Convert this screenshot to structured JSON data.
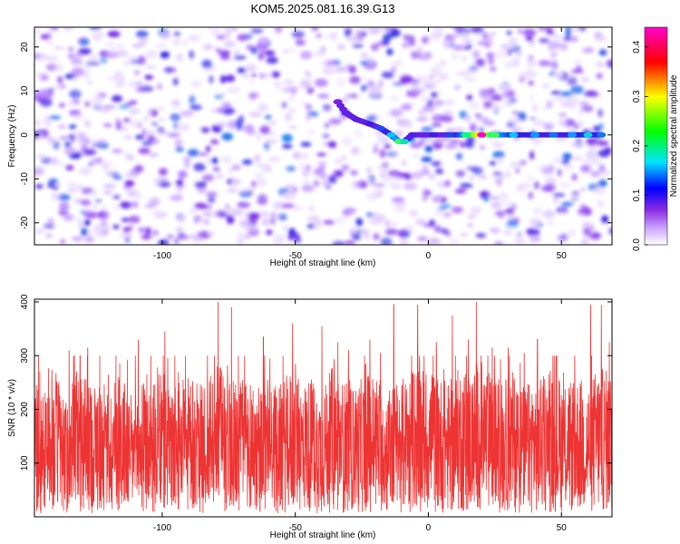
{
  "chart_data": [
    {
      "type": "heatmap",
      "title": "KOM5.2025.081.16.39.G13",
      "xlabel": "Height of straight line (km)",
      "ylabel": "Frequency (Hz)",
      "xlim": [
        -148,
        69
      ],
      "ylim": [
        -25,
        24.5
      ],
      "xticks": [
        -100,
        -50,
        0,
        50
      ],
      "xtick_labels": [
        "-100",
        "-50",
        "0",
        "50"
      ],
      "yticks": [
        -20,
        -10,
        0,
        10,
        20
      ],
      "ytick_labels": [
        "-20",
        "-10",
        "0",
        "10",
        "20"
      ],
      "colorbar": {
        "label": "Normalized spectral amplitude",
        "range": [
          0,
          0.44
        ],
        "ticks": [
          0.0,
          0.1,
          0.2,
          0.3,
          0.4
        ],
        "tick_labels": [
          "0.0",
          "0.1",
          "0.2",
          "0.3",
          "0.4"
        ],
        "colors": [
          "#ffffff",
          "#9b30ff",
          "#0000ff",
          "#00e5ff",
          "#00ff00",
          "#ffff00",
          "#ff0000",
          "#ff00ff"
        ]
      },
      "background_noise_level": 0.05,
      "signal_ridge": [
        {
          "x": -34,
          "y": 7.5,
          "amp": 0.08
        },
        {
          "x": -31,
          "y": 5.0,
          "amp": 0.09
        },
        {
          "x": -27,
          "y": 3.5,
          "amp": 0.1
        },
        {
          "x": -22,
          "y": 2.5,
          "amp": 0.11
        },
        {
          "x": -18,
          "y": 1.5,
          "amp": 0.13
        },
        {
          "x": -14,
          "y": 0.0,
          "amp": 0.16
        },
        {
          "x": -11,
          "y": -1.5,
          "amp": 0.22
        },
        {
          "x": -9,
          "y": -1.5,
          "amp": 0.18
        },
        {
          "x": -6,
          "y": 0.0,
          "amp": 0.1
        },
        {
          "x": 2,
          "y": 0.0,
          "amp": 0.11
        },
        {
          "x": 8,
          "y": 0.0,
          "amp": 0.13
        },
        {
          "x": 14,
          "y": 0.0,
          "amp": 0.2
        },
        {
          "x": 20,
          "y": 0.0,
          "amp": 0.44
        },
        {
          "x": 25,
          "y": 0.0,
          "amp": 0.22
        },
        {
          "x": 32,
          "y": 0.0,
          "amp": 0.16
        },
        {
          "x": 40,
          "y": 0.0,
          "amp": 0.15
        },
        {
          "x": 47,
          "y": 0.0,
          "amp": 0.14
        },
        {
          "x": 54,
          "y": 0.0,
          "amp": 0.15
        },
        {
          "x": 60,
          "y": 0.0,
          "amp": 0.17
        },
        {
          "x": 65,
          "y": 0.0,
          "amp": 0.14
        }
      ]
    },
    {
      "type": "line",
      "title": "",
      "xlabel": "Height of straight line (km)",
      "ylabel": "SNR (10 * v/v)",
      "xlim": [
        -148,
        69
      ],
      "ylim": [
        0,
        405
      ],
      "xticks": [
        -100,
        -50,
        0,
        50
      ],
      "xtick_labels": [
        "-100",
        "-50",
        "0",
        "50"
      ],
      "yticks": [
        100,
        200,
        300,
        400
      ],
      "ytick_labels": [
        "100",
        "200",
        "300",
        "400"
      ],
      "color": "#ee3333",
      "series": [
        {
          "x": [
            -148,
            -144,
            -140,
            -136,
            -132,
            -128,
            -124,
            -120,
            -116,
            -112,
            -108,
            -104,
            -100,
            -96,
            -92,
            -88,
            -84,
            -80,
            -76,
            -72,
            -68,
            -64,
            -60,
            -56,
            -52,
            -48,
            -44,
            -40,
            -36,
            -32,
            -28,
            -24,
            -20,
            -16,
            -12,
            -8,
            -4,
            0,
            4,
            8,
            12,
            16,
            20,
            24,
            28,
            32,
            36,
            40,
            44,
            48,
            52,
            56,
            60,
            64,
            68
          ],
          "values": [
            130,
            120,
            140,
            110,
            150,
            125,
            135,
            120,
            145,
            115,
            130,
            125,
            140,
            120,
            135,
            130,
            125,
            145,
            150,
            130,
            140,
            120,
            135,
            125,
            140,
            130,
            135,
            120,
            145,
            130,
            125,
            135,
            140,
            120,
            130,
            135,
            150,
            140,
            135,
            130,
            145,
            140,
            150,
            135,
            130,
            140,
            125,
            135,
            130,
            140,
            125,
            135,
            130,
            145,
            140
          ],
          "peaks": [
            {
              "x": -146,
              "y": 270
            },
            {
              "x": -135,
              "y": 310
            },
            {
              "x": -128,
              "y": 315
            },
            {
              "x": -109,
              "y": 330
            },
            {
              "x": -99,
              "y": 345
            },
            {
              "x": -83,
              "y": 300
            },
            {
              "x": -79,
              "y": 400
            },
            {
              "x": -74,
              "y": 390
            },
            {
              "x": -62,
              "y": 335
            },
            {
              "x": -51,
              "y": 360
            },
            {
              "x": -40,
              "y": 355
            },
            {
              "x": -34,
              "y": 325
            },
            {
              "x": -30,
              "y": 310
            },
            {
              "x": -22,
              "y": 330
            },
            {
              "x": -18,
              "y": 305
            },
            {
              "x": -13,
              "y": 395
            },
            {
              "x": -4,
              "y": 395
            },
            {
              "x": 3,
              "y": 325
            },
            {
              "x": 9,
              "y": 375
            },
            {
              "x": 15,
              "y": 330
            },
            {
              "x": 18,
              "y": 400
            },
            {
              "x": 24,
              "y": 315
            },
            {
              "x": 30,
              "y": 315
            },
            {
              "x": 36,
              "y": 305
            },
            {
              "x": 41,
              "y": 330
            },
            {
              "x": 48,
              "y": 300
            },
            {
              "x": 55,
              "y": 300
            },
            {
              "x": 61,
              "y": 395
            },
            {
              "x": 65,
              "y": 395
            },
            {
              "x": 68,
              "y": 325
            }
          ]
        }
      ]
    }
  ]
}
